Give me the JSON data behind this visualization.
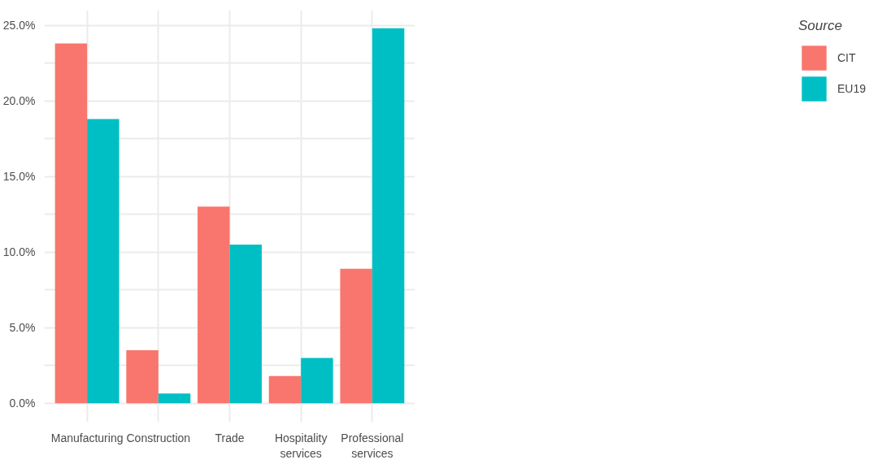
{
  "chart_data": {
    "type": "bar",
    "categories": [
      "Manufacturing",
      "Construction",
      "Trade",
      "Hospitality services",
      "Professional services"
    ],
    "series": [
      {
        "name": "CIT",
        "color": "#f8766d",
        "values": [
          23.8,
          3.5,
          13.0,
          1.8,
          8.9
        ]
      },
      {
        "name": "EU19",
        "color": "#00bfc4",
        "values": [
          18.8,
          0.65,
          10.5,
          3.0,
          24.8
        ]
      }
    ],
    "legend_title": "Source",
    "legend": "right",
    "ylim": [
      -1.25,
      26.0
    ],
    "yticks": [
      {
        "value": 0,
        "label": "0.0%"
      },
      {
        "value": 2.5,
        "label": null
      },
      {
        "value": 5,
        "label": "5.0%"
      },
      {
        "value": 7.5,
        "label": null
      },
      {
        "value": 10,
        "label": "10.0%"
      },
      {
        "value": 12.5,
        "label": null
      },
      {
        "value": 15,
        "label": "15.0%"
      },
      {
        "value": 17.5,
        "label": null
      },
      {
        "value": 20,
        "label": "20.0%"
      },
      {
        "value": 22.5,
        "label": null
      },
      {
        "value": 25,
        "label": "25.0%"
      }
    ],
    "grid": true
  }
}
